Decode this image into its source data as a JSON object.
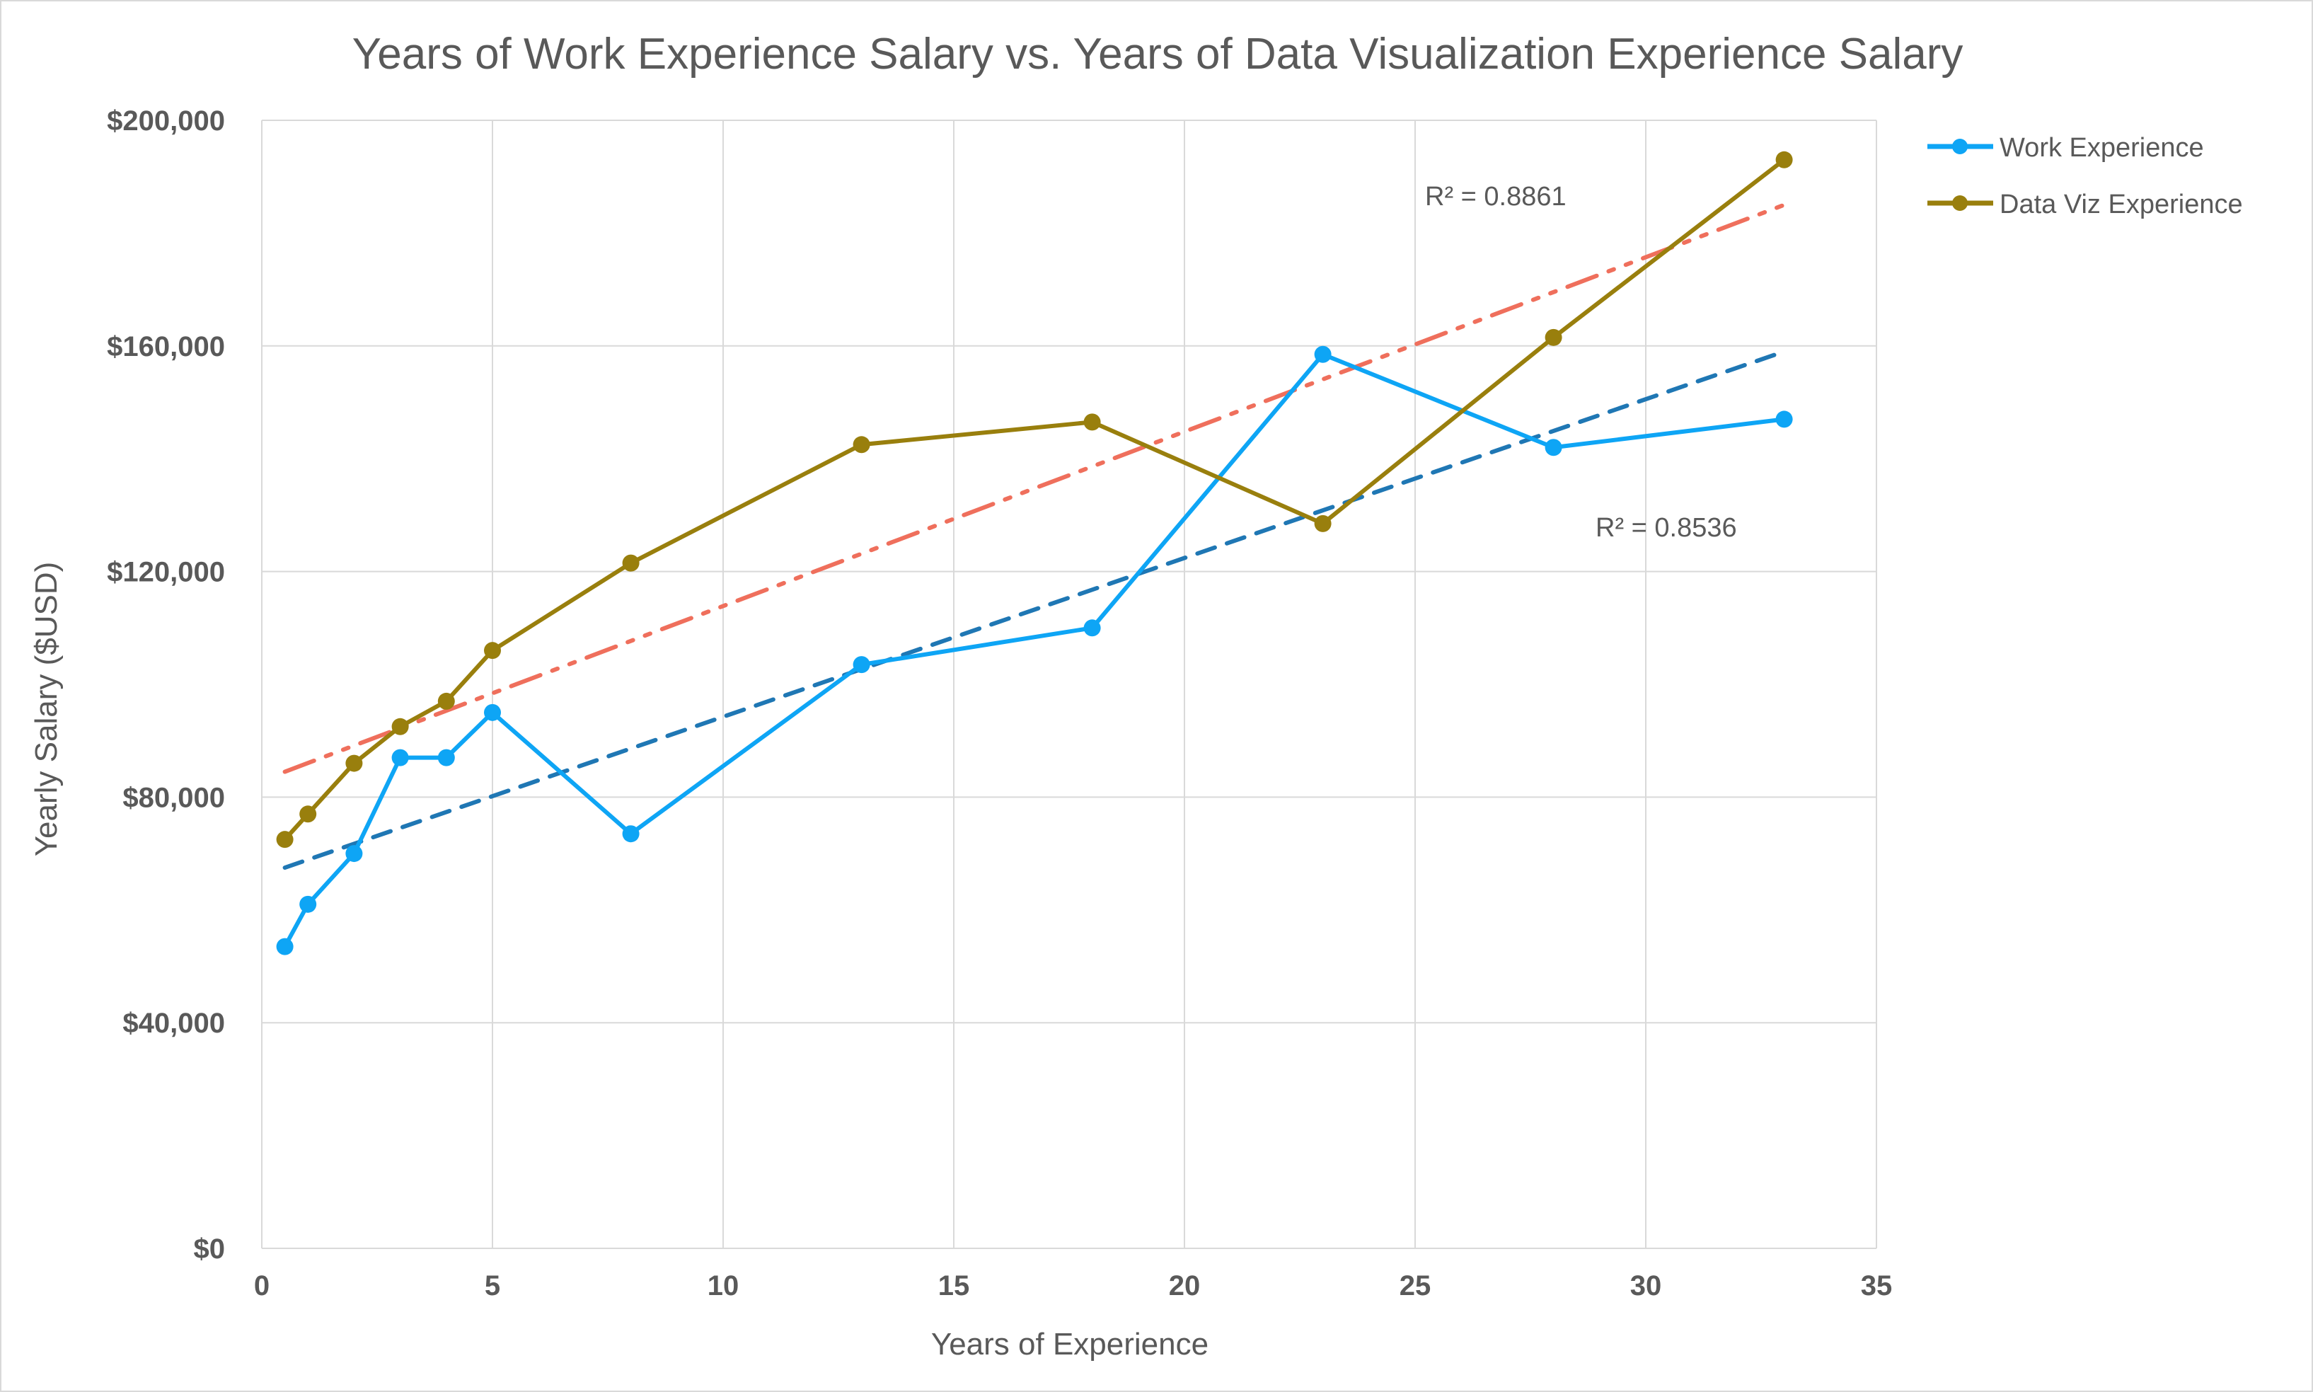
{
  "chart_data": {
    "type": "line",
    "title": "Years of Work Experience Salary vs. Years of Data Visualization Experience Salary",
    "xlabel": "Years of Experience",
    "ylabel": "Yearly Salary ($USD)",
    "xlim": [
      0,
      35
    ],
    "ylim": [
      0,
      200000
    ],
    "x_ticks": [
      0,
      5,
      10,
      15,
      20,
      25,
      30,
      35
    ],
    "x_tick_labels": [
      "0",
      "5",
      "10",
      "15",
      "20",
      "25",
      "30",
      "35"
    ],
    "y_ticks": [
      0,
      40000,
      80000,
      120000,
      160000,
      200000
    ],
    "y_tick_labels": [
      "$0",
      "$40,000",
      "$80,000",
      "$120,000",
      "$160,000",
      "$200,000"
    ],
    "grid": true,
    "legend_position": "top-right",
    "series": [
      {
        "name": "Work Experience",
        "color": "#0ea5f5",
        "x": [
          0.5,
          1,
          2,
          3,
          4,
          5,
          8,
          13,
          18,
          23,
          28,
          33
        ],
        "y": [
          53500,
          61000,
          70000,
          87000,
          87000,
          95000,
          73500,
          103500,
          110000,
          158500,
          142000,
          147000
        ],
        "trendline": {
          "color": "#1f77b4",
          "style": "dashed",
          "start": [
            0.5,
            67500
          ],
          "end": [
            33,
            159000
          ],
          "r2_label": "R² = 0.8536"
        }
      },
      {
        "name": "Data Viz Experience",
        "color": "#997f0d",
        "x": [
          0.5,
          1,
          2,
          3,
          4,
          5,
          8,
          13,
          18,
          23,
          28,
          33
        ],
        "y": [
          72500,
          77000,
          86000,
          92500,
          97000,
          106000,
          121500,
          142500,
          146500,
          128500,
          161500,
          193000
        ],
        "trendline": {
          "color": "#ef6f5c",
          "style": "dash-dot-dot",
          "start": [
            0.5,
            84500
          ],
          "end": [
            33,
            185000
          ],
          "r2_label": "R² = 0.8861"
        }
      }
    ]
  }
}
